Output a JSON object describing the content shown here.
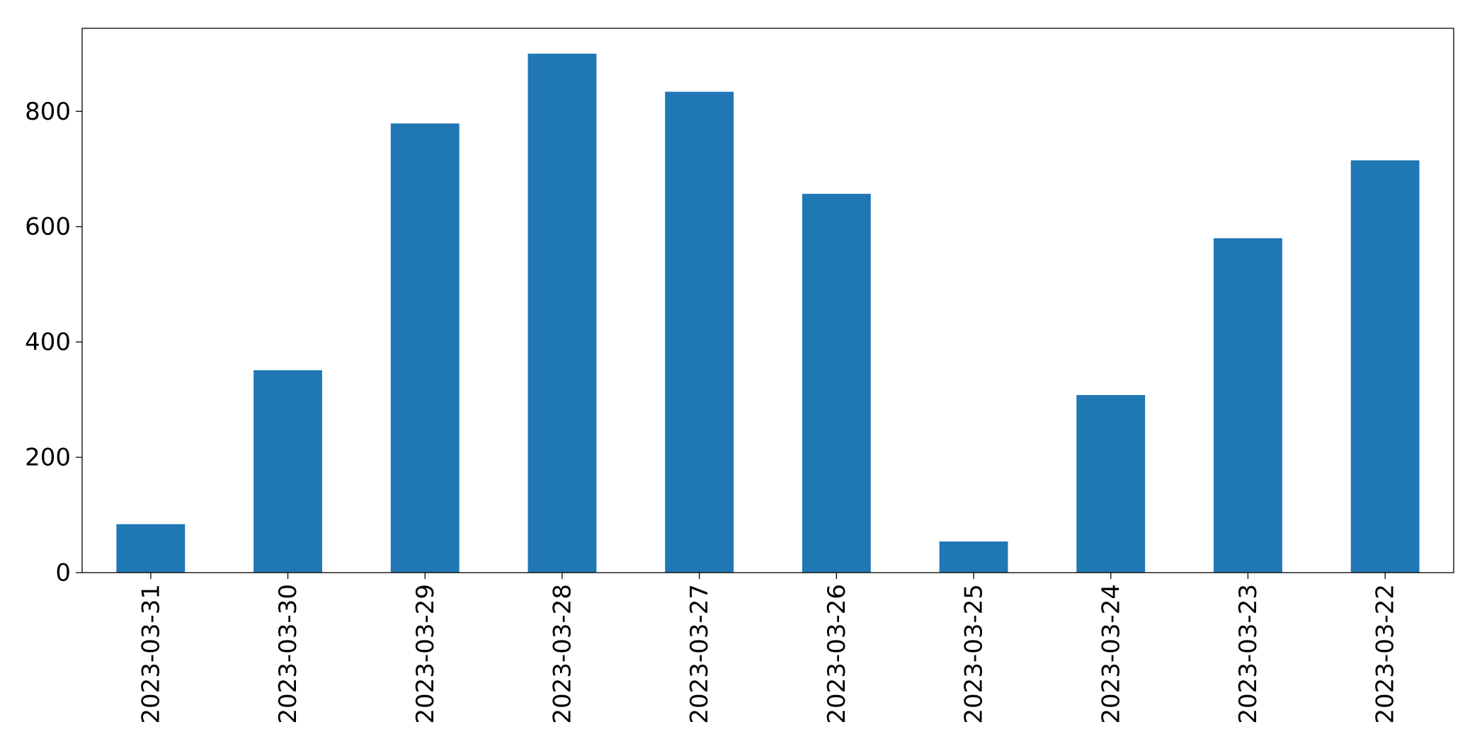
{
  "chart_data": {
    "type": "bar",
    "categories": [
      "2023-03-31",
      "2023-03-30",
      "2023-03-29",
      "2023-03-28",
      "2023-03-27",
      "2023-03-26",
      "2023-03-25",
      "2023-03-24",
      "2023-03-23",
      "2023-03-22"
    ],
    "values": [
      84,
      351,
      779,
      900,
      834,
      657,
      54,
      308,
      580,
      715
    ],
    "color": "#1f77b4",
    "ylim": [
      0,
      944
    ],
    "yticks": [
      0,
      200,
      400,
      600,
      800
    ],
    "grid": false
  }
}
